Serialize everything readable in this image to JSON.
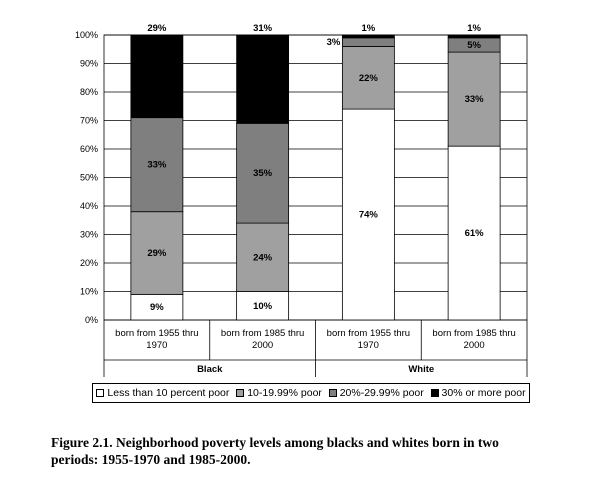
{
  "chart_data": {
    "type": "bar",
    "stacked": true,
    "y_ticks": [
      "0%",
      "10%",
      "20%",
      "30%",
      "40%",
      "50%",
      "60%",
      "70%",
      "80%",
      "90%",
      "100%"
    ],
    "ylim": [
      0,
      100
    ],
    "grid": true,
    "categories": [
      [
        "born from 1955 thru",
        "1970"
      ],
      [
        "born from 1985 thru",
        "2000"
      ],
      [
        "born from 1955 thru",
        "1970"
      ],
      [
        "born from 1985 thru",
        "2000"
      ]
    ],
    "groups": [
      {
        "name": "Black",
        "categories": [
          0,
          1
        ]
      },
      {
        "name": "White",
        "categories": [
          2,
          3
        ]
      }
    ],
    "series": [
      {
        "name": "Less than 10 percent poor",
        "color": "#ffffff",
        "values": [
          9,
          10,
          74,
          61
        ],
        "labels": [
          "9%",
          "10%",
          "74%",
          "61%"
        ]
      },
      {
        "name": "10-19.99% poor",
        "color": "#a0a0a0",
        "values": [
          29,
          24,
          22,
          33
        ],
        "labels": [
          "29%",
          "24%",
          "22%",
          "33%"
        ]
      },
      {
        "name": "20%-29.99% poor",
        "color": "#7f7f7f",
        "values": [
          33,
          35,
          3,
          5
        ],
        "labels": [
          "33%",
          "35%",
          "3%",
          "5%"
        ]
      },
      {
        "name": "30% or more poor",
        "color": "#000000",
        "values": [
          29,
          31,
          1,
          1
        ],
        "labels": [
          "29%",
          "31%",
          "1%",
          "1%"
        ]
      }
    ],
    "legend_position": "bottom"
  },
  "caption": {
    "line1": "Figure 2.1. Neighborhood poverty levels among blacks and whites born in two",
    "line2": "periods: 1955-1970 and 1985-2000."
  }
}
